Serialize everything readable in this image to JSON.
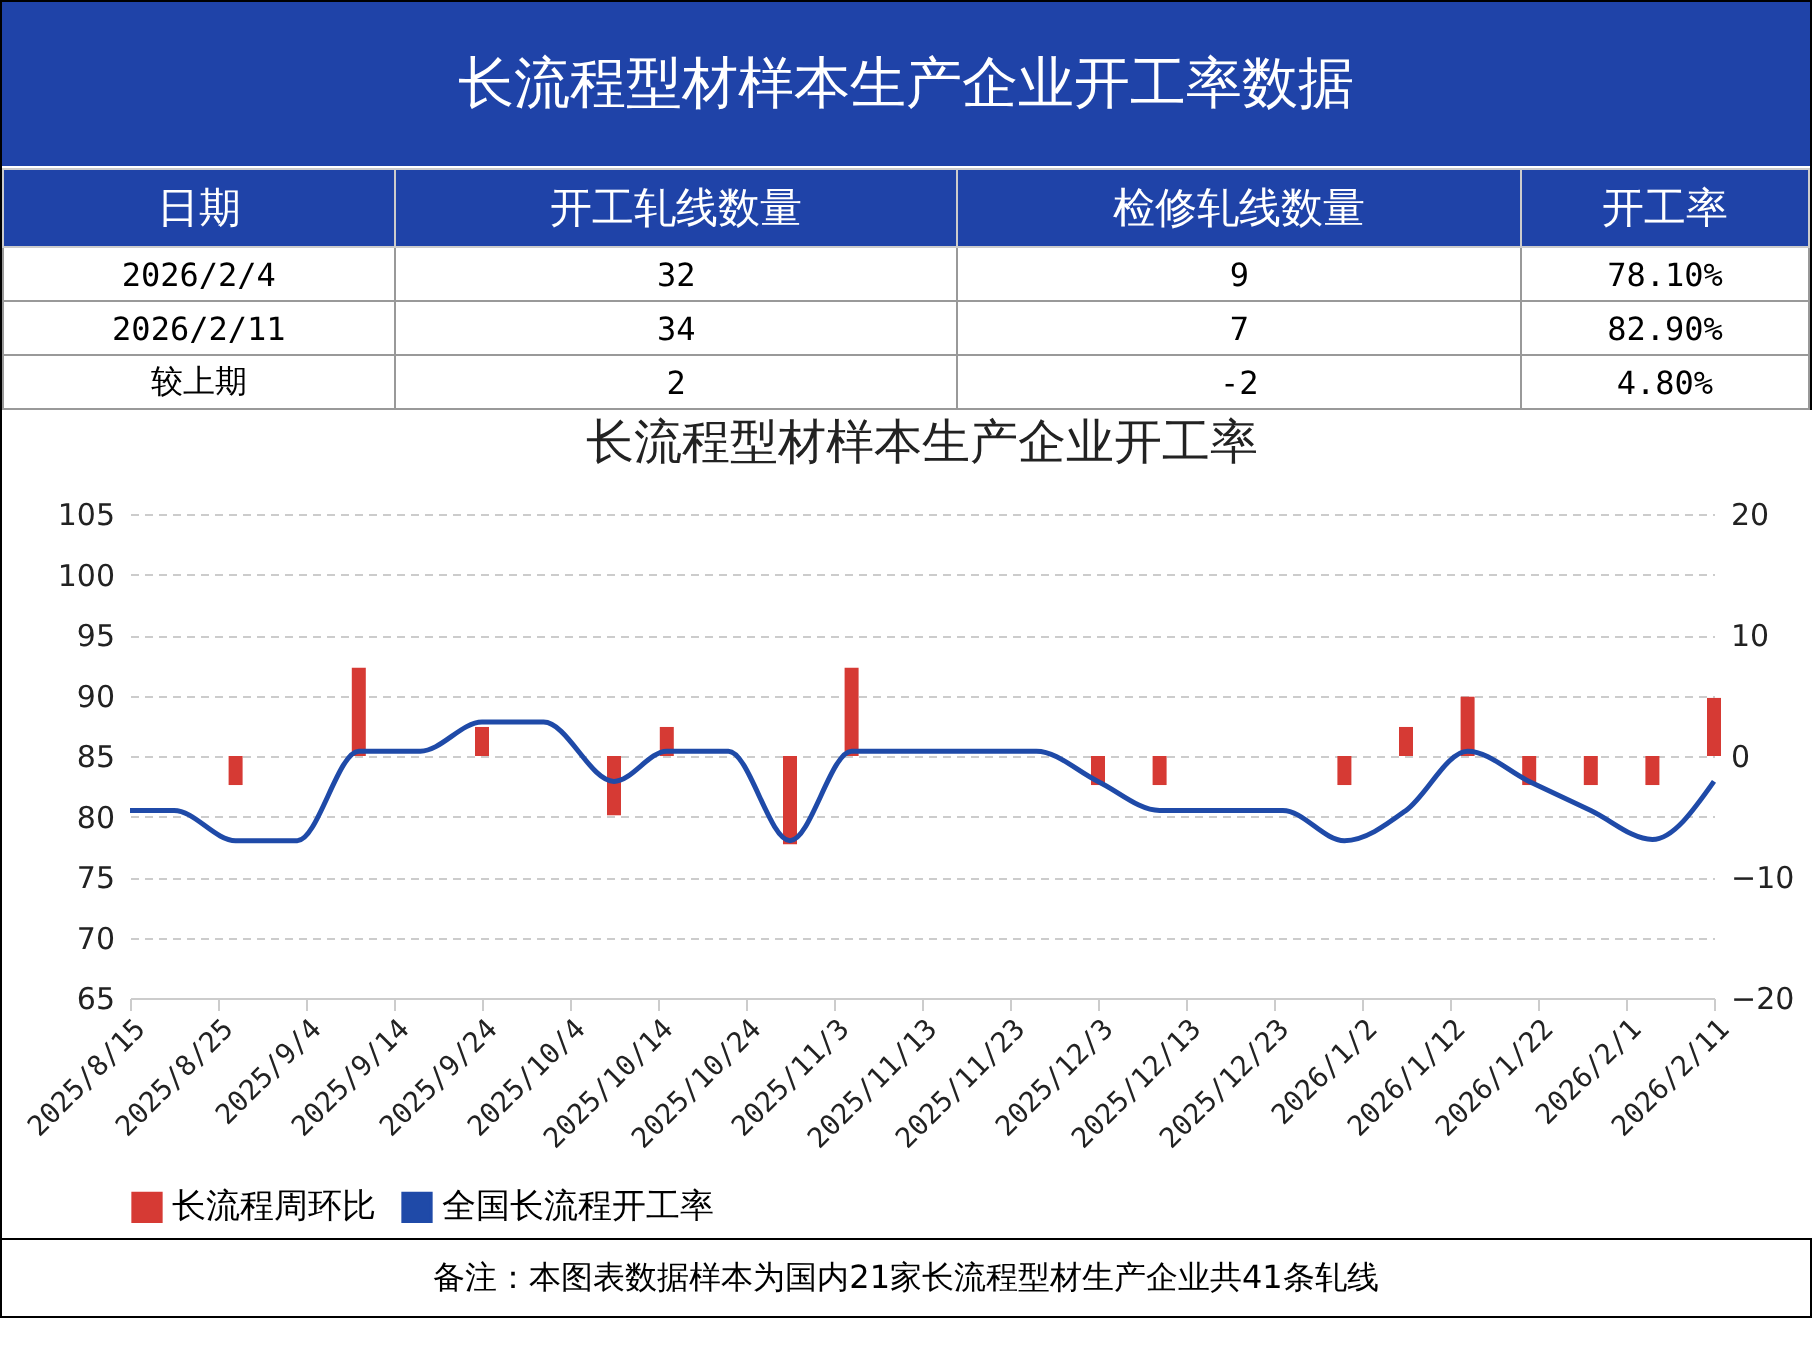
{
  "chart_data": [
    {
      "type": "other",
      "title": "长流程型材样本生产企业开工率数据",
      "categories": [
        "日期",
        "开工轧线数量",
        "检修轧线数量",
        "开工率"
      ],
      "annotations": [
        "2026/2/4",
        "32",
        "9",
        "78.10%",
        "2026/2/11",
        "34",
        "7",
        "82.90%",
        "较上期",
        "2",
        "-2",
        "4.80%"
      ]
    },
    {
      "type": "line",
      "title": "长流程型材样本生产企业开工率",
      "legend": "bottom",
      "grid": "y",
      "xlim": [
        "2025-08-15",
        "2026-02-11"
      ],
      "xticks": [
        {
          "value": "2025-08-15",
          "label": "2025/8/15"
        },
        {
          "value": "2025-08-25",
          "label": "2025/8/25"
        },
        {
          "value": "2025-09-04",
          "label": "2025/9/4"
        },
        {
          "value": "2025-09-14",
          "label": "2025/9/14"
        },
        {
          "value": "2025-09-24",
          "label": "2025/9/24"
        },
        {
          "value": "2025-10-04",
          "label": "2025/10/4"
        },
        {
          "value": "2025-10-14",
          "label": "2025/10/14"
        },
        {
          "value": "2025-10-24",
          "label": "2025/10/24"
        },
        {
          "value": "2025-11-03",
          "label": "2025/11/3"
        },
        {
          "value": "2025-11-13",
          "label": "2025/11/13"
        },
        {
          "value": "2025-11-23",
          "label": "2025/11/23"
        },
        {
          "value": "2025-12-03",
          "label": "2025/12/3"
        },
        {
          "value": "2025-12-13",
          "label": "2025/12/13"
        },
        {
          "value": "2025-12-23",
          "label": "2025/12/23"
        },
        {
          "value": "2026-01-02",
          "label": "2026/1/2"
        },
        {
          "value": "2026-01-12",
          "label": "2026/1/12"
        },
        {
          "value": "2026-01-22",
          "label": "2026/1/22"
        },
        {
          "value": "2026-02-01",
          "label": "2026/2/1"
        },
        {
          "value": "2026-02-11",
          "label": "2026/2/11"
        }
      ],
      "ylim": [
        65,
        105
      ],
      "yticks": [
        65,
        70,
        75,
        80,
        85,
        90,
        95,
        100,
        105
      ],
      "y2lim": [
        -20,
        20
      ],
      "y2ticks": [
        -20,
        -10,
        0,
        10,
        20
      ],
      "series": [
        {
          "name": "长流程周环比",
          "type": "bar",
          "axis": "y2",
          "color": "#d63a34",
          "x": [
            "2025-08-27",
            "2025-09-10",
            "2025-09-24",
            "2025-10-09",
            "2025-10-15",
            "2025-10-29",
            "2025-11-05",
            "2025-12-03",
            "2025-12-10",
            "2025-12-31",
            "2026-01-07",
            "2026-01-14",
            "2026-01-21",
            "2026-01-28",
            "2026-02-04",
            "2026-02-11"
          ],
          "values": [
            -2.4,
            7.3,
            2.4,
            -4.9,
            2.4,
            -7.3,
            7.3,
            -2.4,
            -2.4,
            -2.4,
            2.4,
            4.9,
            -2.4,
            -2.4,
            -2.4,
            4.8
          ]
        },
        {
          "name": "全国长流程开工率",
          "type": "line",
          "color": "#1f4aa8",
          "x": [
            "2025-08-15",
            "2025-08-20",
            "2025-08-27",
            "2025-09-03",
            "2025-09-10",
            "2025-09-17",
            "2025-09-24",
            "2025-10-01",
            "2025-10-09",
            "2025-10-15",
            "2025-10-22",
            "2025-10-29",
            "2025-11-05",
            "2025-11-12",
            "2025-11-19",
            "2025-11-26",
            "2025-12-03",
            "2025-12-10",
            "2025-12-17",
            "2025-12-24",
            "2025-12-31",
            "2026-01-07",
            "2026-01-14",
            "2026-01-21",
            "2026-01-28",
            "2026-02-04",
            "2026-02-11"
          ],
          "values": [
            80.5,
            80.5,
            78.0,
            78.0,
            85.4,
            85.4,
            87.8,
            87.8,
            82.9,
            85.4,
            85.4,
            78.0,
            85.4,
            85.4,
            85.4,
            85.4,
            82.9,
            80.5,
            80.5,
            80.5,
            78.0,
            80.5,
            85.4,
            82.9,
            80.5,
            78.1,
            82.9
          ]
        }
      ],
      "annotations": [
        "备注：本图表数据样本为国内21家长流程型材生产企业共41条轧线"
      ]
    }
  ]
}
